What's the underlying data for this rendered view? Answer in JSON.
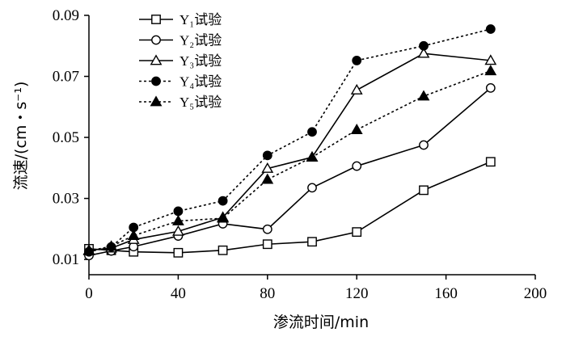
{
  "chart_data": {
    "type": "line",
    "xlabel": "渗流时间/min",
    "ylabel": "流速/(cm・s⁻¹)",
    "xlim": [
      0,
      200
    ],
    "ylim": [
      0.005,
      0.09
    ],
    "xticks": [
      0,
      40,
      80,
      120,
      160,
      200
    ],
    "xtick_labels": [
      "0",
      "40",
      "80",
      "120",
      "160",
      "200"
    ],
    "yticks": [
      0.01,
      0.03,
      0.05,
      0.07,
      0.09
    ],
    "ytick_labels": [
      "0.01",
      "0.03",
      "0.05",
      "0.07",
      "0.09"
    ],
    "grid": false,
    "legend_position": "top-left",
    "series": [
      {
        "name": "Y₁试验",
        "marker": "square-open",
        "dash": "solid",
        "x": [
          0,
          10,
          20,
          40,
          60,
          80,
          100,
          120,
          150,
          180
        ],
        "y": [
          0.0135,
          0.013,
          0.0125,
          0.0122,
          0.013,
          0.015,
          0.0158,
          0.019,
          0.0327,
          0.042
        ]
      },
      {
        "name": "Y₂试验",
        "marker": "circle-open",
        "dash": "solid",
        "x": [
          0,
          10,
          20,
          40,
          60,
          80,
          100,
          120,
          150,
          180
        ],
        "y": [
          0.0113,
          0.0128,
          0.0142,
          0.0177,
          0.0217,
          0.0199,
          0.0335,
          0.0406,
          0.0475,
          0.0662
        ]
      },
      {
        "name": "Y₃试验",
        "marker": "triangle-open",
        "dash": "solid",
        "x": [
          0,
          10,
          20,
          40,
          60,
          80,
          100,
          120,
          150,
          180
        ],
        "y": [
          0.013,
          0.0137,
          0.0165,
          0.0192,
          0.0238,
          0.0398,
          0.0435,
          0.0655,
          0.0775,
          0.0752
        ]
      },
      {
        "name": "Y₄试验",
        "marker": "circle-filled",
        "dash": "dotted",
        "x": [
          0,
          10,
          20,
          40,
          60,
          80,
          100,
          120,
          150,
          180
        ],
        "y": [
          0.0125,
          0.0141,
          0.0205,
          0.0258,
          0.0292,
          0.0441,
          0.0518,
          0.0752,
          0.08,
          0.0855
        ]
      },
      {
        "name": "Y₅试验",
        "marker": "triangle-filled",
        "dash": "dotted",
        "x": [
          0,
          10,
          20,
          40,
          60,
          80,
          100,
          120,
          150,
          180
        ],
        "y": [
          0.0128,
          0.0143,
          0.0178,
          0.0226,
          0.0235,
          0.0362,
          0.0435,
          0.0525,
          0.0635,
          0.0718
        ]
      }
    ]
  }
}
